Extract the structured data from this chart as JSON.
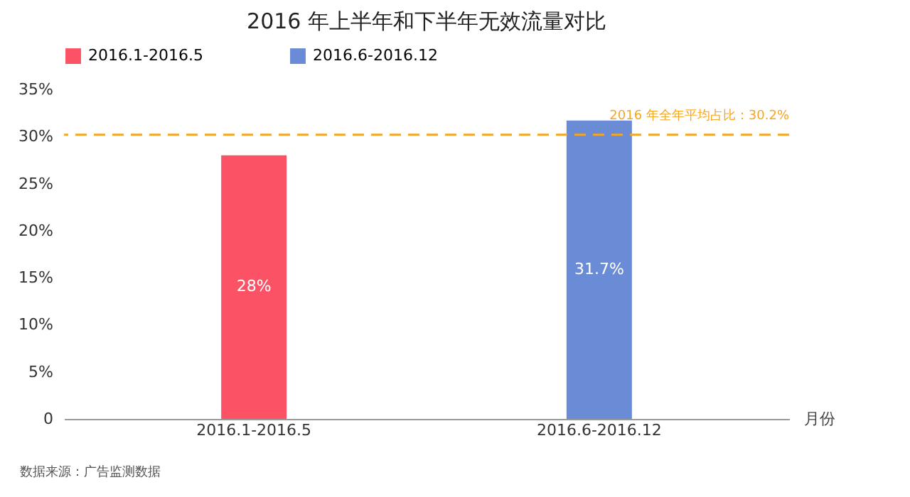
{
  "chart_data": {
    "type": "bar",
    "title": "2016 年上半年和下半年无效流量对比",
    "xlabel": "月份",
    "categories": [
      "2016.1-2016.5",
      "2016.6-2016.12"
    ],
    "series": [
      {
        "name": "2016.1-2016.5",
        "color": "#fb5266",
        "values": [
          28,
          null
        ],
        "value_labels": [
          "28%",
          null
        ]
      },
      {
        "name": "2016.6-2016.12",
        "color": "#6a8bd6",
        "values": [
          null,
          31.7
        ],
        "value_labels": [
          null,
          "31.7%"
        ]
      }
    ],
    "ylim": [
      0,
      35
    ],
    "yticks": [
      {
        "value": 0,
        "label": "0"
      },
      {
        "value": 5,
        "label": "5%"
      },
      {
        "value": 10,
        "label": "10%"
      },
      {
        "value": 15,
        "label": "15%"
      },
      {
        "value": 20,
        "label": "20%"
      },
      {
        "value": 25,
        "label": "25%"
      },
      {
        "value": 30,
        "label": "30%"
      },
      {
        "value": 35,
        "label": "35%"
      }
    ],
    "ref_lines": [
      {
        "axis": "y",
        "value": 30.2,
        "label": "2016 年全年平均占比：30.2%",
        "color": "#f5a623",
        "line_style": "dashed"
      }
    ],
    "legend": "top",
    "grid": false,
    "annotations": [
      "数据来源：广告监测数据"
    ]
  }
}
